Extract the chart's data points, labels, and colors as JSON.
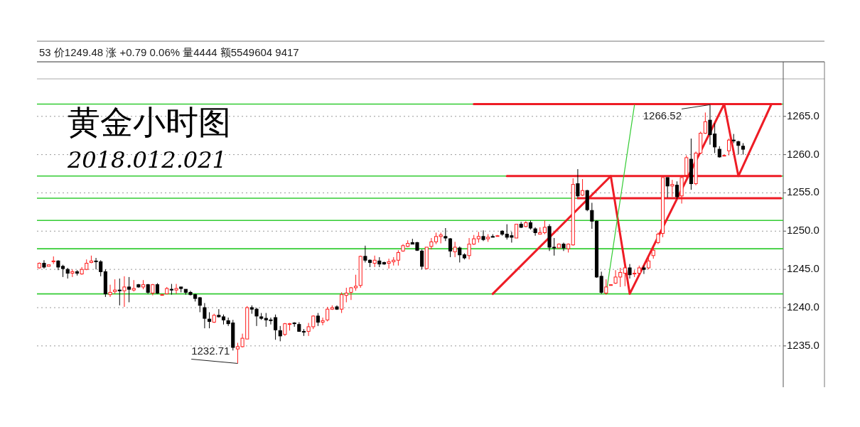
{
  "chart_data": {
    "type": "candlestick",
    "title": "黄金小时图",
    "subtitle": "2018.012.021",
    "categories": [
      null,
      null,
      null,
      null,
      null,
      null,
      null,
      null,
      null,
      null,
      null,
      null,
      null,
      null,
      null,
      null,
      null,
      null,
      null,
      null,
      null,
      null,
      null,
      null,
      null,
      null,
      null,
      null,
      null,
      null,
      null,
      null,
      null,
      null,
      null,
      null,
      null,
      null,
      null,
      null,
      null,
      null,
      null,
      null,
      null,
      null,
      null,
      null,
      null,
      null,
      null,
      null,
      null,
      null,
      null,
      null,
      null,
      null,
      null,
      null,
      null,
      null,
      null,
      null,
      null,
      null,
      null,
      null,
      null,
      null,
      null,
      null,
      null,
      null,
      null,
      null,
      null,
      null,
      null,
      null,
      null,
      null,
      null,
      null,
      null,
      null,
      null,
      null,
      null,
      null,
      null,
      null,
      null,
      null,
      null,
      null,
      null,
      null,
      null,
      null,
      null,
      null,
      null,
      null,
      null,
      null,
      null,
      null,
      null,
      null,
      null,
      null,
      null,
      null,
      null,
      null,
      null,
      null,
      null,
      null,
      null,
      null,
      null,
      null,
      null,
      null,
      null,
      null,
      null,
      null,
      null,
      null,
      null,
      null,
      null,
      null,
      null,
      null,
      null,
      null,
      null,
      null,
      null,
      null,
      null,
      null,
      null,
      null,
      null,
      null,
      null,
      null,
      null,
      null,
      null,
      null,
      null,
      null
    ],
    "ohlc": [
      [
        1245.2,
        1245.9,
        1245.1,
        1245.8
      ],
      [
        1245.8,
        1246.2,
        1245.1,
        1245.3
      ],
      [
        1245.4,
        1245.6,
        1245.4,
        1245.6
      ],
      [
        1246.0,
        1246.7,
        1245.7,
        1246.1
      ],
      [
        1246.1,
        1246.2,
        1244.9,
        1245.3
      ],
      [
        1245.4,
        1245.6,
        1244.0,
        1245.1
      ],
      [
        1245.0,
        1245.2,
        1243.8,
        1244.5
      ],
      [
        1244.5,
        1245.0,
        1244.0,
        1244.7
      ],
      [
        1244.7,
        1244.9,
        1244.2,
        1244.5
      ],
      [
        1244.4,
        1245.3,
        1244.3,
        1245.0
      ],
      [
        1245.0,
        1246.3,
        1244.9,
        1245.8
      ],
      [
        1245.9,
        1246.8,
        1245.8,
        1246.1
      ],
      [
        1246.1,
        1246.5,
        1245.0,
        1246.0
      ],
      [
        1246.0,
        1246.2,
        1244.1,
        1244.7
      ],
      [
        1244.7,
        1245.0,
        1241.4,
        1241.8
      ],
      [
        1241.7,
        1243.0,
        1241.4,
        1242.0
      ],
      [
        1242.1,
        1243.7,
        1241.8,
        1242.3
      ],
      [
        1242.3,
        1243.8,
        1240.3,
        1242.2
      ],
      [
        1242.2,
        1244.1,
        1240.1,
        1242.7
      ],
      [
        1242.7,
        1244.0,
        1240.7,
        1242.4
      ],
      [
        1242.3,
        1243.6,
        1242.1,
        1242.5
      ],
      [
        1243.0,
        1243.1,
        1242.6,
        1242.7
      ],
      [
        1242.7,
        1243.6,
        1242.4,
        1243.0
      ],
      [
        1243.0,
        1243.1,
        1241.8,
        1242.0
      ],
      [
        1241.9,
        1243.1,
        1241.6,
        1243.0
      ],
      [
        1243.0,
        1243.2,
        1241.8,
        1241.9
      ],
      [
        1241.7,
        1241.8,
        1241.6,
        1241.7
      ],
      [
        1241.8,
        1242.7,
        1241.8,
        1242.5
      ],
      [
        1242.4,
        1243.1,
        1241.7,
        1242.3
      ],
      [
        1242.3,
        1243.1,
        1241.8,
        1242.5
      ],
      [
        1242.7,
        1242.7,
        1242.0,
        1242.5
      ],
      [
        1242.4,
        1242.4,
        1241.7,
        1242.0
      ],
      [
        1242.0,
        1242.2,
        1241.6,
        1241.7
      ],
      [
        1241.7,
        1241.8,
        1240.8,
        1241.2
      ],
      [
        1241.3,
        1241.4,
        1239.4,
        1240.3
      ],
      [
        1240.0,
        1240.6,
        1237.3,
        1238.6
      ],
      [
        1238.5,
        1239.4,
        1237.3,
        1238.2
      ],
      [
        1238.1,
        1239.2,
        1238.0,
        1239.0
      ],
      [
        1239.0,
        1239.8,
        1238.7,
        1238.8
      ],
      [
        1238.8,
        1239.1,
        1237.8,
        1238.4
      ],
      [
        1238.3,
        1238.7,
        1237.6,
        1237.9
      ],
      [
        1238.0,
        1238.4,
        1234.4,
        1234.8
      ],
      [
        1234.6,
        1235.4,
        1232.71,
        1234.9
      ],
      [
        1234.9,
        1236.6,
        1234.8,
        1236.0
      ],
      [
        1235.9,
        1240.2,
        1235.9,
        1240.0
      ],
      [
        1240.0,
        1240.3,
        1239.2,
        1239.8
      ],
      [
        1239.8,
        1240.0,
        1237.6,
        1238.9
      ],
      [
        1238.8,
        1239.3,
        1238.4,
        1238.6
      ],
      [
        1238.6,
        1239.3,
        1237.5,
        1238.4
      ],
      [
        1238.4,
        1238.7,
        1237.8,
        1238.3
      ],
      [
        1238.7,
        1239.1,
        1235.8,
        1237.1
      ],
      [
        1237.0,
        1237.6,
        1235.6,
        1236.3
      ],
      [
        1236.5,
        1238.0,
        1236.3,
        1237.9
      ],
      [
        1237.8,
        1238.0,
        1237.0,
        1237.9
      ],
      [
        1238.0,
        1238.1,
        1237.5,
        1237.9
      ],
      [
        1237.8,
        1238.1,
        1236.9,
        1236.9
      ],
      [
        1236.9,
        1237.2,
        1236.3,
        1236.8
      ],
      [
        1236.9,
        1238.0,
        1236.3,
        1237.5
      ],
      [
        1237.5,
        1239.0,
        1237.2,
        1238.9
      ],
      [
        1238.9,
        1239.3,
        1237.6,
        1238.1
      ],
      [
        1238.1,
        1238.7,
        1237.7,
        1238.3
      ],
      [
        1238.4,
        1240.1,
        1238.2,
        1239.8
      ],
      [
        1239.8,
        1240.3,
        1239.7,
        1240.0
      ],
      [
        1240.1,
        1240.3,
        1239.7,
        1239.8
      ],
      [
        1239.8,
        1242.0,
        1239.3,
        1241.7
      ],
      [
        1241.6,
        1242.6,
        1240.7,
        1241.9
      ],
      [
        1242.0,
        1242.7,
        1241.0,
        1242.6
      ],
      [
        1242.6,
        1244.3,
        1242.2,
        1242.8
      ],
      [
        1242.9,
        1246.8,
        1242.6,
        1246.7
      ],
      [
        1246.7,
        1248.1,
        1245.9,
        1246.2
      ],
      [
        1246.2,
        1246.3,
        1245.3,
        1245.9
      ],
      [
        1245.8,
        1246.8,
        1245.3,
        1246.2
      ],
      [
        1246.1,
        1246.6,
        1245.3,
        1245.7
      ],
      [
        1245.9,
        1246.0,
        1245.6,
        1245.7
      ],
      [
        1245.8,
        1246.4,
        1245.1,
        1246.0
      ],
      [
        1246.0,
        1246.6,
        1245.5,
        1246.2
      ],
      [
        1246.2,
        1247.5,
        1245.5,
        1247.2
      ],
      [
        1247.4,
        1248.3,
        1247.3,
        1248.1
      ],
      [
        1248.0,
        1248.8,
        1247.9,
        1248.4
      ],
      [
        1248.5,
        1249.0,
        1248.3,
        1248.3
      ],
      [
        1248.5,
        1248.6,
        1247.4,
        1247.5
      ],
      [
        1247.4,
        1247.6,
        1245.0,
        1245.4
      ],
      [
        1245.1,
        1247.9,
        1245.0,
        1247.9
      ],
      [
        1248.0,
        1249.1,
        1247.6,
        1248.6
      ],
      [
        1248.6,
        1249.8,
        1248.3,
        1249.3
      ],
      [
        1249.3,
        1249.8,
        1248.4,
        1249.5
      ],
      [
        1249.3,
        1250.4,
        1248.7,
        1249.1
      ],
      [
        1249.0,
        1249.1,
        1246.6,
        1247.4
      ],
      [
        1247.3,
        1248.6,
        1246.6,
        1247.9
      ],
      [
        1247.8,
        1248.0,
        1245.9,
        1246.9
      ],
      [
        1246.9,
        1247.1,
        1246.3,
        1246.5
      ],
      [
        1246.8,
        1249.1,
        1246.3,
        1248.3
      ],
      [
        1248.3,
        1249.5,
        1248.2,
        1249.0
      ],
      [
        1249.0,
        1249.9,
        1248.5,
        1249.3
      ],
      [
        1249.3,
        1250.1,
        1248.7,
        1248.9
      ],
      [
        1249.0,
        1249.6,
        1248.6,
        1249.2
      ],
      [
        1249.3,
        1249.6,
        1249.2,
        1249.2
      ],
      [
        1249.4,
        1249.5,
        1249.3,
        1249.4
      ],
      [
        1250.0,
        1250.1,
        1249.4,
        1249.6
      ],
      [
        1249.6,
        1250.9,
        1248.9,
        1249.2
      ],
      [
        1249.4,
        1249.9,
        1248.5,
        1249.2
      ],
      [
        1249.1,
        1250.9,
        1249.1,
        1250.9
      ],
      [
        1250.9,
        1251.2,
        1250.4,
        1250.5
      ],
      [
        1250.6,
        1251.3,
        1250.5,
        1251.1
      ],
      [
        1251.1,
        1251.4,
        1250.2,
        1250.4
      ],
      [
        1250.3,
        1250.5,
        1249.4,
        1249.8
      ],
      [
        1249.6,
        1250.5,
        1249.6,
        1249.8
      ],
      [
        1249.8,
        1251.4,
        1249.6,
        1250.5
      ],
      [
        1250.6,
        1250.9,
        1247.4,
        1247.9
      ],
      [
        1247.9,
        1249.1,
        1246.8,
        1247.8
      ],
      [
        1247.8,
        1248.4,
        1247.8,
        1248.3
      ],
      [
        1248.3,
        1248.5,
        1247.4,
        1247.8
      ],
      [
        1247.7,
        1248.4,
        1247.2,
        1248.3
      ],
      [
        1248.2,
        1256.9,
        1248.1,
        1256.1
      ],
      [
        1256.2,
        1258.1,
        1254.4,
        1254.6
      ],
      [
        1254.7,
        1256.8,
        1254.6,
        1255.3
      ],
      [
        1255.3,
        1255.4,
        1252.6,
        1252.8
      ],
      [
        1252.7,
        1253.7,
        1250.3,
        1251.3
      ],
      [
        1251.3,
        1251.4,
        1243.9,
        1244.0
      ],
      [
        1244.1,
        1244.7,
        1241.8,
        1242.0
      ],
      [
        1241.9,
        1243.7,
        1241.7,
        1242.7
      ],
      [
        1242.9,
        1243.0,
        1242.9,
        1243.0
      ],
      [
        1243.2,
        1244.9,
        1243.1,
        1244.0
      ],
      [
        1244.0,
        1245.2,
        1242.7,
        1244.6
      ],
      [
        1244.5,
        1245.7,
        1242.8,
        1245.2
      ],
      [
        1245.2,
        1245.7,
        1243.8,
        1244.3
      ],
      [
        1244.4,
        1244.9,
        1244.0,
        1244.5
      ],
      [
        1244.5,
        1245.5,
        1244.4,
        1245.2
      ],
      [
        1245.2,
        1245.5,
        1244.4,
        1245.0
      ],
      [
        1245.2,
        1246.6,
        1245.0,
        1246.1
      ],
      [
        1246.8,
        1248.0,
        1246.4,
        1247.5
      ],
      [
        1248.5,
        1249.8,
        1248.3,
        1249.6
      ],
      [
        1249.7,
        1257.0,
        1249.2,
        1257.0
      ],
      [
        1257.0,
        1257.0,
        1254.4,
        1255.9
      ],
      [
        1255.9,
        1256.7,
        1254.5,
        1256.1
      ],
      [
        1256.0,
        1256.5,
        1254.2,
        1254.5
      ],
      [
        1254.6,
        1257.3,
        1253.6,
        1257.0
      ],
      [
        1257.3,
        1259.9,
        1257.0,
        1259.6
      ],
      [
        1259.4,
        1262.1,
        1255.4,
        1256.2
      ],
      [
        1256.2,
        1260.4,
        1256.0,
        1260.2
      ],
      [
        1260.2,
        1263.0,
        1260.1,
        1262.8
      ],
      [
        1262.8,
        1265.5,
        1262.7,
        1264.3
      ],
      [
        1264.5,
        1266.52,
        1261.3,
        1262.6
      ],
      [
        1262.7,
        1264.1,
        1260.2,
        1261.0
      ],
      [
        1260.7,
        1261.1,
        1259.6,
        1259.7
      ],
      [
        1259.9,
        1260.0,
        1259.8,
        1259.9
      ],
      [
        1260.5,
        1262.1,
        1259.9,
        1261.9
      ],
      [
        1261.9,
        1262.7,
        1261.5,
        1261.8
      ],
      [
        1261.7,
        1261.8,
        1260.0,
        1261.2
      ],
      [
        1261.1,
        1261.5,
        1260.0,
        1260.7
      ],
      null,
      null,
      null,
      null,
      null,
      null,
      null,
      null
    ],
    "ylim": [
      1229.6,
      1269.9
    ],
    "yticks": [
      {
        "value": 1235,
        "label": "1235.0"
      },
      {
        "value": 1240,
        "label": "1240.0"
      },
      {
        "value": 1245,
        "label": "1245.0"
      },
      {
        "value": 1250,
        "label": "1250.0"
      },
      {
        "value": 1255,
        "label": "1255.0"
      },
      {
        "value": 1260,
        "label": "1260.0"
      },
      {
        "value": 1265,
        "label": "1265.0"
      }
    ],
    "tick_labels": "y",
    "grid": "y",
    "ref_lines": [
      {
        "axis": "y",
        "value": 1266.6,
        "color": "#33cc33"
      },
      {
        "axis": "y",
        "value": 1257.2,
        "color": "#33cc33"
      },
      {
        "axis": "y",
        "value": 1254.3,
        "color": "#33cc33"
      },
      {
        "axis": "y",
        "value": 1251.4,
        "color": "#33cc33"
      },
      {
        "axis": "y",
        "value": 1247.7,
        "color": "#33cc33"
      },
      {
        "axis": "y",
        "value": 1241.8,
        "color": "#33cc33"
      }
    ],
    "series": [
      {
        "type": "line",
        "color": "#ee1c25",
        "values": [
          null,
          null,
          null,
          null,
          null,
          null,
          null,
          null,
          null,
          null,
          null,
          null,
          null,
          null,
          null,
          null,
          null,
          null,
          null,
          null,
          null,
          null,
          null,
          null,
          null,
          null,
          null,
          null,
          null,
          null,
          null,
          null,
          null,
          null,
          null,
          null,
          null,
          null,
          null,
          null,
          null,
          null,
          null,
          null,
          null,
          null,
          null,
          null,
          null,
          null,
          null,
          null,
          null,
          null,
          null,
          null,
          null,
          null,
          null,
          null,
          null,
          null,
          null,
          null,
          null,
          null,
          null,
          null,
          null,
          null,
          null,
          null,
          null,
          null,
          null,
          null,
          null,
          null,
          null,
          null,
          null,
          null,
          null,
          null,
          null,
          null,
          null,
          null,
          null,
          null,
          null,
          null,
          null,
          null,
          null,
          null,
          1241.8,
          null,
          null,
          null,
          null,
          null,
          null,
          null,
          null,
          null,
          null,
          null,
          null,
          null,
          null,
          null,
          null,
          null,
          null,
          null,
          null,
          null,
          null,
          null,
          null,
          1257.2,
          null,
          null,
          null,
          1241.8,
          null,
          null,
          null,
          null,
          null,
          null,
          null,
          null,
          null,
          null,
          null,
          null,
          null,
          null,
          null,
          null,
          null,
          null,
          null,
          1266.6,
          null,
          null,
          1257.2,
          null,
          null,
          null,
          null,
          null,
          null,
          1266.6,
          null,
          null
        ]
      },
      {
        "type": "line",
        "color": "#ee1c25",
        "values": [
          null,
          null,
          null,
          null,
          null,
          null,
          null,
          null,
          null,
          null,
          null,
          null,
          null,
          null,
          null,
          null,
          null,
          null,
          null,
          null,
          null,
          null,
          null,
          null,
          null,
          null,
          null,
          null,
          null,
          null,
          null,
          null,
          null,
          null,
          null,
          null,
          null,
          null,
          null,
          null,
          null,
          null,
          null,
          null,
          null,
          null,
          null,
          null,
          null,
          null,
          null,
          null,
          null,
          null,
          null,
          null,
          null,
          null,
          null,
          null,
          null,
          null,
          null,
          null,
          null,
          null,
          null,
          null,
          null,
          null,
          null,
          null,
          null,
          null,
          null,
          null,
          null,
          null,
          null,
          null,
          null,
          null,
          null,
          null,
          null,
          null,
          null,
          null,
          null,
          null,
          null,
          null,
          1266.6,
          null,
          null,
          null,
          null,
          null,
          null,
          null,
          null,
          null,
          null,
          null,
          null,
          null,
          null,
          null,
          null,
          null,
          null,
          null,
          null,
          null,
          null,
          null,
          null,
          null,
          null,
          null,
          null,
          null,
          null,
          null,
          null,
          null,
          null,
          null,
          null,
          null,
          null,
          null,
          null,
          null,
          null,
          null,
          null,
          null,
          null,
          null,
          null,
          null,
          null,
          null,
          null,
          null,
          null,
          null,
          null,
          null,
          null,
          null,
          null,
          null,
          null,
          null,
          null,
          1266.6
        ]
      },
      {
        "type": "line",
        "color": "#ee1c25",
        "values": [
          null,
          null,
          null,
          null,
          null,
          null,
          null,
          null,
          null,
          null,
          null,
          null,
          null,
          null,
          null,
          null,
          null,
          null,
          null,
          null,
          null,
          null,
          null,
          null,
          null,
          null,
          null,
          null,
          null,
          null,
          null,
          null,
          null,
          null,
          null,
          null,
          null,
          null,
          null,
          null,
          null,
          null,
          null,
          null,
          null,
          null,
          null,
          null,
          null,
          null,
          null,
          null,
          null,
          null,
          null,
          null,
          null,
          null,
          null,
          null,
          null,
          null,
          null,
          null,
          null,
          null,
          null,
          null,
          null,
          null,
          null,
          null,
          null,
          null,
          null,
          null,
          null,
          null,
          null,
          null,
          null,
          null,
          null,
          null,
          null,
          null,
          null,
          null,
          null,
          null,
          null,
          null,
          null,
          null,
          null,
          null,
          null,
          null,
          null,
          1257.2,
          null,
          null,
          null,
          null,
          null,
          null,
          null,
          null,
          null,
          null,
          null,
          null,
          null,
          null,
          null,
          null,
          null,
          null,
          null,
          null,
          null,
          null,
          null,
          null,
          null,
          null,
          null,
          null,
          null,
          null,
          null,
          null,
          null,
          null,
          null,
          null,
          null,
          null,
          null,
          null,
          null,
          null,
          null,
          null,
          null,
          null,
          null,
          null,
          null,
          null,
          null,
          null,
          null,
          null,
          null,
          null,
          null,
          1257.2
        ]
      },
      {
        "type": "line",
        "color": "#ee1c25",
        "values": [
          null,
          null,
          null,
          null,
          null,
          null,
          null,
          null,
          null,
          null,
          null,
          null,
          null,
          null,
          null,
          null,
          null,
          null,
          null,
          null,
          null,
          null,
          null,
          null,
          null,
          null,
          null,
          null,
          null,
          null,
          null,
          null,
          null,
          null,
          null,
          null,
          null,
          null,
          null,
          null,
          null,
          null,
          null,
          null,
          null,
          null,
          null,
          null,
          null,
          null,
          null,
          null,
          null,
          null,
          null,
          null,
          null,
          null,
          null,
          null,
          null,
          null,
          null,
          null,
          null,
          null,
          null,
          null,
          null,
          null,
          null,
          null,
          null,
          null,
          null,
          null,
          null,
          null,
          null,
          null,
          null,
          null,
          null,
          null,
          null,
          null,
          null,
          null,
          null,
          null,
          null,
          null,
          null,
          null,
          null,
          null,
          null,
          null,
          null,
          null,
          null,
          null,
          null,
          null,
          null,
          null,
          null,
          null,
          null,
          null,
          null,
          null,
          null,
          null,
          1254.3,
          null,
          null,
          null,
          null,
          null,
          null,
          null,
          null,
          null,
          null,
          null,
          null,
          null,
          null,
          null,
          null,
          null,
          null,
          null,
          null,
          null,
          null,
          null,
          null,
          null,
          null,
          null,
          null,
          null,
          null,
          null,
          null,
          null,
          null,
          null,
          null,
          null,
          null,
          null,
          null,
          null,
          null,
          1254.3
        ]
      },
      {
        "type": "line",
        "color": "#33cc33",
        "values": [
          null,
          null,
          null,
          null,
          null,
          null,
          null,
          null,
          null,
          null,
          null,
          null,
          null,
          null,
          null,
          null,
          null,
          null,
          null,
          null,
          null,
          null,
          null,
          null,
          null,
          null,
          null,
          null,
          null,
          null,
          null,
          null,
          null,
          null,
          null,
          null,
          null,
          null,
          null,
          null,
          null,
          null,
          null,
          null,
          null,
          null,
          null,
          null,
          null,
          null,
          null,
          null,
          null,
          null,
          null,
          null,
          null,
          null,
          null,
          null,
          null,
          null,
          null,
          null,
          null,
          null,
          null,
          null,
          null,
          null,
          null,
          null,
          null,
          null,
          null,
          null,
          null,
          null,
          null,
          null,
          null,
          null,
          null,
          null,
          null,
          null,
          null,
          null,
          null,
          null,
          null,
          null,
          null,
          null,
          null,
          null,
          null,
          null,
          null,
          null,
          null,
          null,
          null,
          null,
          null,
          null,
          null,
          null,
          null,
          null,
          null,
          null,
          null,
          null,
          null,
          null,
          null,
          null,
          null,
          null,
          1241.8,
          null,
          null,
          null,
          null,
          null,
          1266.5,
          null,
          null,
          null,
          null,
          null,
          null,
          null,
          null,
          null,
          null,
          null,
          null,
          null,
          null,
          null,
          null,
          null,
          null,
          null,
          null,
          null,
          null,
          null,
          null,
          null,
          null,
          null,
          null,
          null,
          null,
          null
        ]
      }
    ],
    "annotations": [
      "53 价1249.48 涨 +0.79 0.06% 量4444 额5549604 9417",
      {
        "text": "1266.52",
        "y": 1266.52
      },
      "1232.71"
    ]
  }
}
